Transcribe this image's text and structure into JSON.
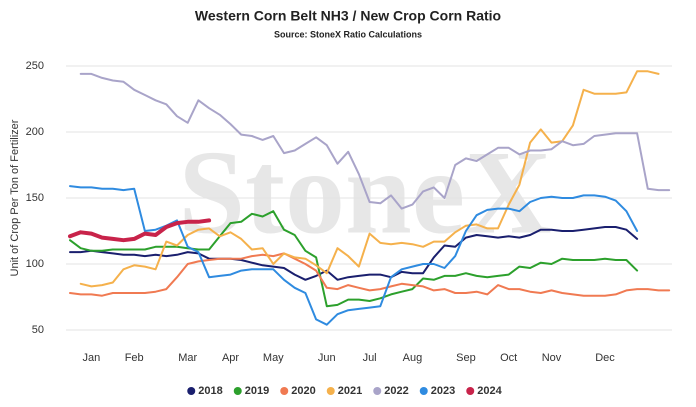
{
  "chart_data": {
    "type": "line",
    "title": "Western Corn Belt NH3 / New Crop Corn Ratio",
    "subtitle": "Source: StoneX Ratio Calculations",
    "y_axis_label": "Unit of Crop Per Ton of Fertilizer",
    "watermark": "StoneX",
    "categories": [
      null,
      null,
      "Jan",
      null,
      null,
      null,
      "Feb",
      null,
      null,
      null,
      null,
      "Mar",
      null,
      null,
      null,
      "Apr",
      null,
      null,
      null,
      "May",
      null,
      null,
      null,
      null,
      "Jun",
      null,
      null,
      null,
      "Jul",
      null,
      null,
      null,
      "Aug",
      null,
      null,
      null,
      null,
      "Sep",
      null,
      null,
      null,
      "Oct",
      null,
      null,
      null,
      "Nov",
      null,
      null,
      null,
      null,
      "Dec",
      null,
      null,
      null,
      null,
      null,
      null
    ],
    "ylim": [
      50,
      250
    ],
    "yticks": [
      50,
      100,
      150,
      200,
      250
    ],
    "grid": true,
    "legend": "bottom",
    "series": [
      {
        "name": "2018",
        "color": "#1a1f6e",
        "values": [
          109,
          109,
          110,
          109,
          108,
          107,
          107,
          106,
          107,
          106,
          107,
          109,
          108,
          104,
          104,
          104,
          103,
          101,
          99,
          98,
          97,
          92,
          88,
          91,
          95,
          88,
          90,
          91,
          92,
          92,
          90,
          94,
          93,
          93,
          105,
          114,
          113,
          120,
          122,
          121,
          120,
          121,
          120,
          122,
          126,
          126,
          125,
          125,
          126,
          127,
          128,
          128,
          126,
          119,
          null,
          null,
          null
        ]
      },
      {
        "name": "2019",
        "color": "#2ca02c",
        "values": [
          118,
          112,
          110,
          110,
          111,
          111,
          111,
          111,
          113,
          113,
          113,
          112,
          111,
          111,
          121,
          131,
          132,
          138,
          136,
          140,
          126,
          122,
          110,
          105,
          68,
          69,
          73,
          73,
          72,
          74,
          77,
          79,
          81,
          89,
          88,
          91,
          91,
          93,
          91,
          90,
          91,
          92,
          98,
          97,
          101,
          100,
          104,
          103,
          103,
          103,
          104,
          103,
          103,
          95,
          null,
          null,
          null
        ]
      },
      {
        "name": "2020",
        "color": "#f07a52",
        "values": [
          78,
          77,
          77,
          76,
          78,
          78,
          78,
          78,
          79,
          81,
          90,
          100,
          102,
          103,
          104,
          104,
          104,
          106,
          107,
          106,
          108,
          104,
          100,
          95,
          82,
          81,
          84,
          82,
          80,
          81,
          83,
          85,
          84,
          83,
          80,
          81,
          78,
          78,
          79,
          77,
          84,
          81,
          81,
          79,
          78,
          80,
          78,
          77,
          76,
          76,
          76,
          77,
          80,
          81,
          81,
          80,
          80
        ]
      },
      {
        "name": "2021",
        "color": "#f5b14c",
        "values": [
          null,
          85,
          83,
          84,
          86,
          96,
          99,
          98,
          96,
          117,
          114,
          122,
          126,
          127,
          121,
          124,
          119,
          111,
          112,
          100,
          108,
          105,
          104,
          99,
          93,
          112,
          106,
          98,
          123,
          116,
          115,
          116,
          115,
          113,
          117,
          117,
          124,
          129,
          130,
          127,
          127,
          145,
          160,
          192,
          202,
          192,
          193,
          205,
          232,
          229,
          229,
          229,
          230,
          246,
          246,
          244,
          null
        ]
      },
      {
        "name": "2022",
        "color": "#a9a4c9",
        "values": [
          null,
          244,
          244,
          241,
          239,
          238,
          232,
          228,
          224,
          221,
          212,
          207,
          224,
          218,
          213,
          206,
          198,
          197,
          194,
          197,
          184,
          186,
          191,
          196,
          190,
          176,
          185,
          168,
          147,
          146,
          152,
          142,
          145,
          155,
          158,
          150,
          175,
          180,
          178,
          183,
          188,
          188,
          183,
          186,
          186,
          187,
          193,
          190,
          191,
          197,
          198,
          199,
          199,
          199,
          157,
          156,
          156
        ]
      },
      {
        "name": "2023",
        "color": "#2f8be0",
        "values": [
          159,
          158,
          158,
          157,
          157,
          156,
          157,
          125,
          126,
          129,
          133,
          113,
          109,
          90,
          91,
          92,
          95,
          96,
          96,
          96,
          88,
          82,
          78,
          58,
          54,
          62,
          65,
          66,
          67,
          68,
          90,
          96,
          98,
          100,
          100,
          97,
          106,
          125,
          137,
          141,
          142,
          142,
          140,
          147,
          150,
          151,
          150,
          150,
          152,
          152,
          151,
          148,
          140,
          125,
          null,
          null,
          null
        ]
      },
      {
        "name": "2024",
        "color": "#c8234a",
        "values": [
          121,
          124,
          123,
          120,
          119,
          118,
          119,
          123,
          122,
          128,
          131,
          132,
          132,
          133,
          null,
          null,
          null,
          null,
          null,
          null,
          null,
          null,
          null,
          null,
          null,
          null,
          null,
          null,
          null,
          null,
          null,
          null,
          null,
          null,
          null,
          null,
          null,
          null,
          null,
          null,
          null,
          null,
          null,
          null,
          null,
          null,
          null,
          null,
          null,
          null,
          null,
          null,
          null,
          null,
          null,
          null,
          null
        ]
      }
    ]
  }
}
